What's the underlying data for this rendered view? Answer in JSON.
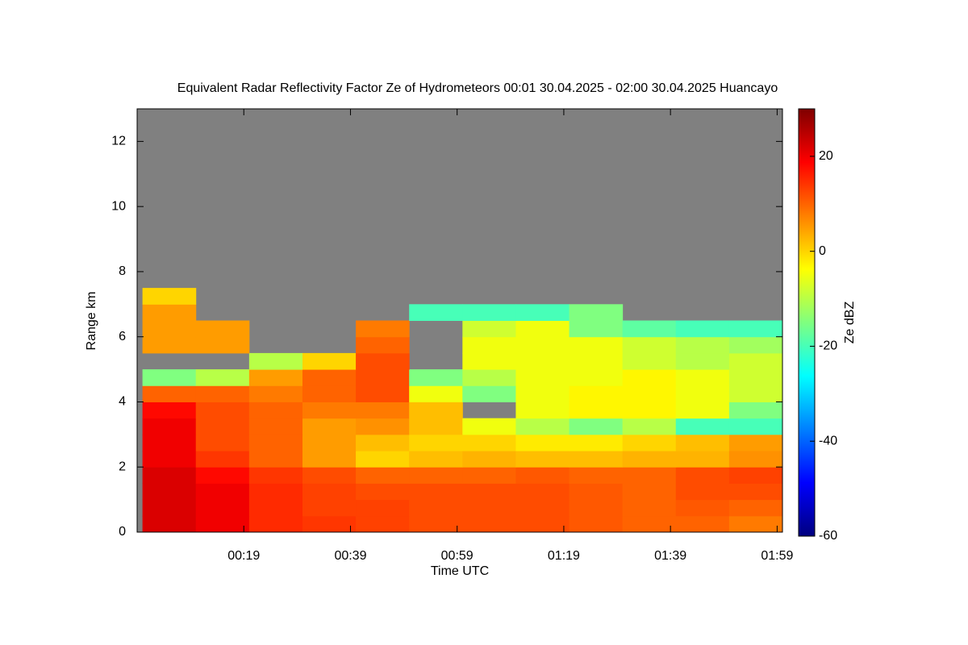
{
  "chart_data": {
    "type": "heatmap",
    "title": "Equivalent Radar Reflectivity Factor Ze of Hydrometeors   00:01 30.04.2025 - 02:00 30.04.2025 Huancayo",
    "xlabel": "Time UTC",
    "ylabel": "Range km",
    "colorbar_label": "Ze dBZ",
    "xlim": [
      -1,
      120
    ],
    "xticks": [
      {
        "value": 19,
        "label": "00:19"
      },
      {
        "value": 39,
        "label": "00:39"
      },
      {
        "value": 59,
        "label": "00:59"
      },
      {
        "value": 79,
        "label": "01:19"
      },
      {
        "value": 99,
        "label": "01:39"
      },
      {
        "value": 119,
        "label": "01:59"
      }
    ],
    "ylim": [
      0,
      13
    ],
    "yticks": [
      0,
      2,
      4,
      6,
      8,
      10,
      12
    ],
    "clim": [
      -60,
      30
    ],
    "cticks": [
      -60,
      -40,
      -20,
      0,
      20
    ],
    "colormap": "jet",
    "missing_color": "#808080",
    "x_bins": [
      0,
      10,
      20,
      30,
      40,
      50,
      60,
      70,
      80,
      90,
      100,
      110,
      120
    ],
    "y_bins": [
      0,
      0.5,
      1,
      1.5,
      2,
      2.5,
      3,
      3.5,
      4,
      4.5,
      5,
      5.5,
      6,
      6.5,
      7,
      7.5
    ],
    "z": [
      [
        22,
        20,
        15,
        14,
        13,
        12,
        12,
        12,
        11,
        10,
        10,
        8
      ],
      [
        22,
        20,
        15,
        13,
        13,
        12,
        12,
        12,
        11,
        10,
        11,
        10
      ],
      [
        22,
        20,
        15,
        13,
        12,
        12,
        12,
        12,
        11,
        10,
        12,
        12
      ],
      [
        22,
        18,
        14,
        12,
        10,
        10,
        10,
        11,
        10,
        10,
        12,
        13
      ],
      [
        20,
        14,
        10,
        5,
        0,
        2,
        3,
        2,
        2,
        3,
        3,
        6
      ],
      [
        20,
        12,
        10,
        5,
        2,
        0,
        0,
        -2,
        -2,
        0,
        2,
        5
      ],
      [
        20,
        12,
        10,
        5,
        6,
        2,
        -5,
        -10,
        -15,
        -10,
        -20,
        -20
      ],
      [
        18,
        12,
        10,
        8,
        8,
        2,
        null,
        -5,
        -3,
        -3,
        -5,
        -15
      ],
      [
        10,
        10,
        8,
        10,
        12,
        -5,
        -15,
        -5,
        -3,
        -3,
        -5,
        -8
      ],
      [
        -15,
        -10,
        5,
        10,
        12,
        -15,
        -10,
        -5,
        -5,
        -3,
        -5,
        -8
      ],
      [
        null,
        null,
        -10,
        0,
        12,
        null,
        -5,
        -5,
        -5,
        -8,
        -10,
        -8
      ],
      [
        5,
        5,
        null,
        null,
        10,
        null,
        -5,
        -5,
        -5,
        -8,
        -10,
        -12
      ],
      [
        5,
        5,
        null,
        null,
        8,
        null,
        -8,
        -5,
        -15,
        -18,
        -20,
        -20
      ],
      [
        5,
        null,
        null,
        null,
        null,
        -20,
        -20,
        -20,
        -15,
        null,
        null,
        null
      ],
      [
        0,
        null,
        null,
        null,
        null,
        null,
        null,
        null,
        null,
        null,
        null,
        null
      ]
    ]
  }
}
